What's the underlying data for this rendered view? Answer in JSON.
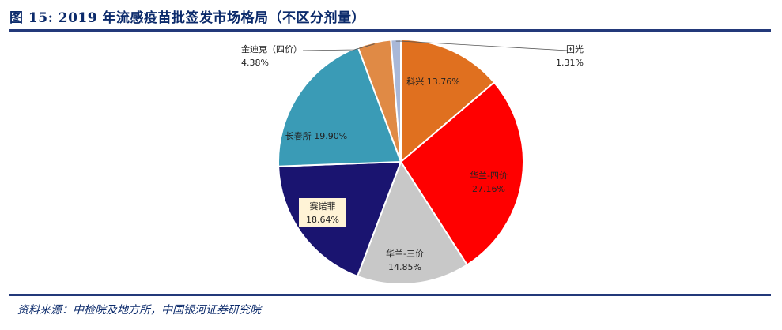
{
  "header": {
    "title": "图 15: 2019 年流感疫苗批签发市场格局（不区分剂量）"
  },
  "footer": {
    "source": "资料来源：中检院及地方所，中国银河证券研究院"
  },
  "chart_data": {
    "type": "pie",
    "title": "",
    "slices": [
      {
        "name": "科兴",
        "value": 13.76,
        "label": "13.76%",
        "color": "#e0701f"
      },
      {
        "name": "华兰-四价",
        "value": 27.16,
        "label": "27.16%",
        "color": "#ff0000"
      },
      {
        "name": "华兰-三价",
        "value": 14.85,
        "label": "14.85%",
        "color": "#c8c8c8"
      },
      {
        "name": "赛诺菲",
        "value": 18.64,
        "label": "18.64%",
        "color": "#1a1470"
      },
      {
        "name": "长春所",
        "value": 19.9,
        "label": "19.90%",
        "color": "#3a9bb6"
      },
      {
        "name": "金迪克（四价）",
        "value": 4.38,
        "label": "4.38%",
        "color": "#e08a45"
      },
      {
        "name": "国光",
        "value": 1.31,
        "label": "1.31%",
        "color": "#a9b8d8"
      }
    ]
  }
}
